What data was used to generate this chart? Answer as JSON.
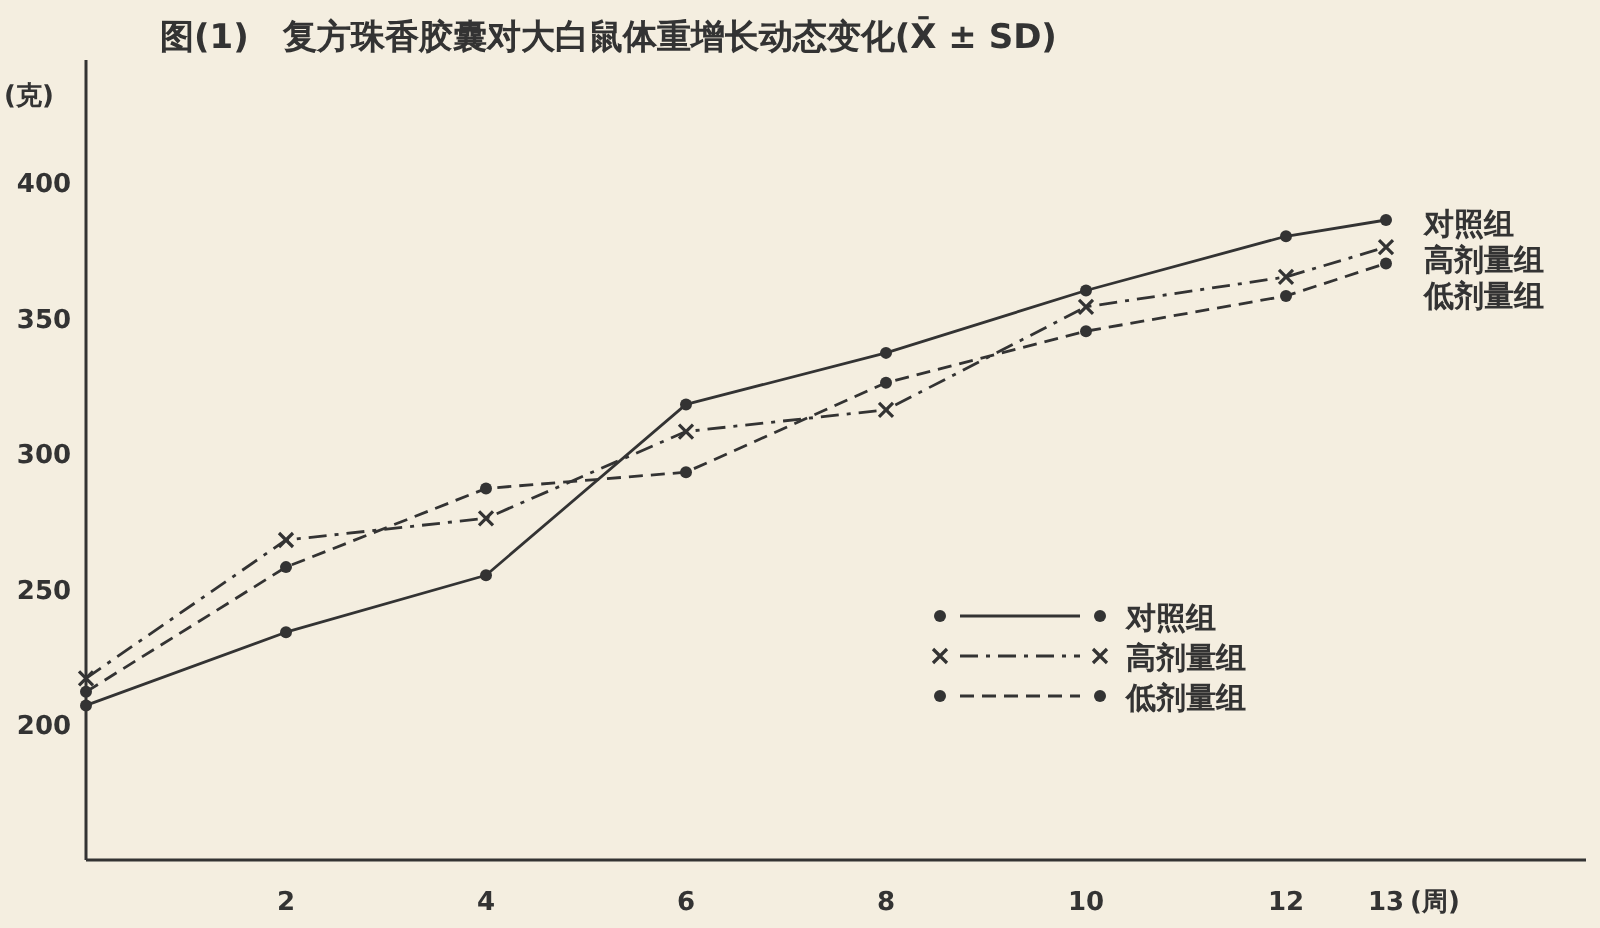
{
  "chart_data": {
    "type": "line",
    "title": "图(1)　复方珠香胶囊对大白鼠体重增长动态变化(X̄ ± SD)",
    "xlabel": "(周)",
    "ylabel": "(克)",
    "x": [
      0,
      2,
      4,
      6,
      8,
      10,
      12,
      13
    ],
    "xlim": [
      0,
      15
    ],
    "xticks": [
      2,
      4,
      6,
      8,
      10,
      12,
      13
    ],
    "ylim": [
      150,
      445
    ],
    "yticks": [
      200,
      250,
      300,
      350,
      400
    ],
    "grid": false,
    "legend": "bottom right",
    "series": [
      {
        "name": "对照组",
        "color": "#333333",
        "marker": "circle",
        "line_style": "solid",
        "values": [
          207,
          234,
          255,
          318,
          337,
          360,
          380,
          386
        ]
      },
      {
        "name": "高剂量组",
        "color": "#333333",
        "marker": "cross",
        "line_style": "dashdot",
        "values": [
          217,
          268,
          276,
          308,
          316,
          354,
          365,
          376
        ]
      },
      {
        "name": "低剂量组",
        "color": "#333333",
        "marker": "circle",
        "line_style": "dashed",
        "values": [
          212,
          258,
          287,
          293,
          326,
          345,
          358,
          370
        ]
      }
    ]
  }
}
